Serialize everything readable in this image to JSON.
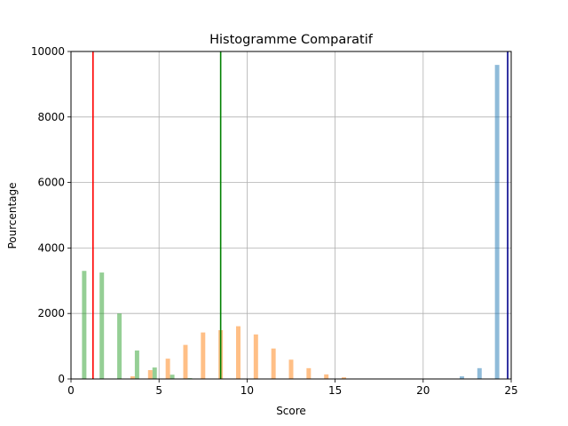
{
  "chart_data": {
    "type": "bar",
    "title": "Histogramme Comparatif",
    "xlabel": "Score",
    "ylabel": "Pourcentage",
    "xlim": [
      0,
      25
    ],
    "ylim": [
      0,
      10000
    ],
    "x_ticks": [
      0,
      5,
      10,
      15,
      20,
      25
    ],
    "y_ticks": [
      0,
      2000,
      4000,
      6000,
      8000,
      10000
    ],
    "grid": true,
    "bin_width": 1,
    "series": [
      {
        "color": "#2ca02c",
        "opacity": 0.5,
        "bins": [
          {
            "x": 0.75,
            "value": 3300
          },
          {
            "x": 1.75,
            "value": 3250
          },
          {
            "x": 2.75,
            "value": 2000
          },
          {
            "x": 3.75,
            "value": 870
          },
          {
            "x": 4.75,
            "value": 350
          },
          {
            "x": 5.75,
            "value": 130
          },
          {
            "x": 6.75,
            "value": 25
          }
        ]
      },
      {
        "color": "#ff7f0e",
        "opacity": 0.5,
        "bins": [
          {
            "x": 3.5,
            "value": 80
          },
          {
            "x": 4.5,
            "value": 270
          },
          {
            "x": 5.5,
            "value": 620
          },
          {
            "x": 6.5,
            "value": 1040
          },
          {
            "x": 7.5,
            "value": 1420
          },
          {
            "x": 8.5,
            "value": 1490
          },
          {
            "x": 9.5,
            "value": 1610
          },
          {
            "x": 10.5,
            "value": 1360
          },
          {
            "x": 11.5,
            "value": 930
          },
          {
            "x": 12.5,
            "value": 590
          },
          {
            "x": 13.5,
            "value": 330
          },
          {
            "x": 14.5,
            "value": 140
          },
          {
            "x": 15.5,
            "value": 50
          }
        ]
      },
      {
        "color": "#1f77b4",
        "opacity": 0.5,
        "bins": [
          {
            "x": 22.2,
            "value": 80
          },
          {
            "x": 23.2,
            "value": 330
          },
          {
            "x": 24.2,
            "value": 9590
          }
        ]
      }
    ],
    "vertical_lines": [
      {
        "x": 1.25,
        "color": "#ff0000"
      },
      {
        "x": 8.5,
        "color": "#008000"
      },
      {
        "x": 24.8,
        "color": "#00008b"
      }
    ]
  }
}
